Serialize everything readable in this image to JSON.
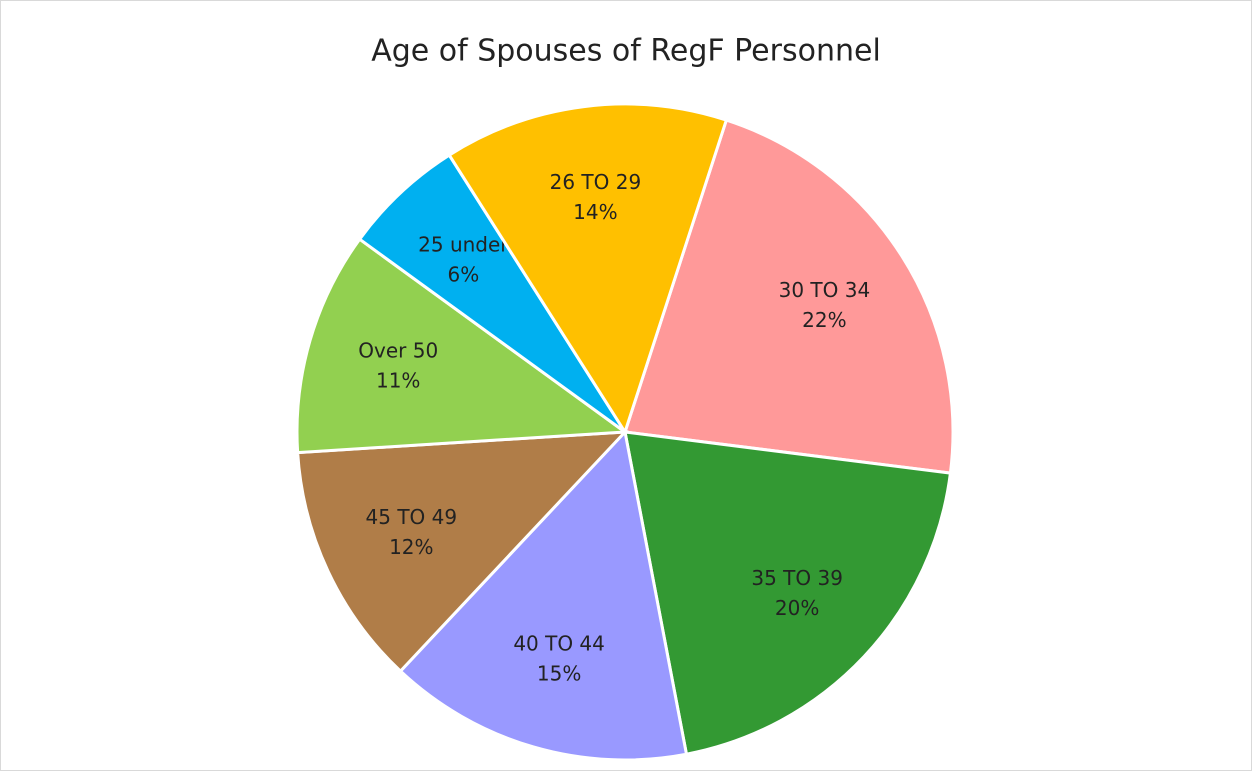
{
  "chart_data": {
    "type": "pie",
    "title": "Age of Spouses of RegF Personnel",
    "categories": [
      "30 TO 34",
      "35 TO 39",
      "40 TO 44",
      "45 TO 49",
      "Over 50",
      "25 under",
      "26 TO 29"
    ],
    "values": [
      22,
      20,
      15,
      12,
      11,
      6,
      14
    ],
    "value_labels": [
      "22%",
      "20%",
      "15%",
      "12%",
      "11%",
      "6%",
      "14%"
    ],
    "colors": [
      "#ff9999",
      "#339933",
      "#9999ff",
      "#b07d48",
      "#92d050",
      "#00b0f0",
      "#ffc000"
    ]
  }
}
